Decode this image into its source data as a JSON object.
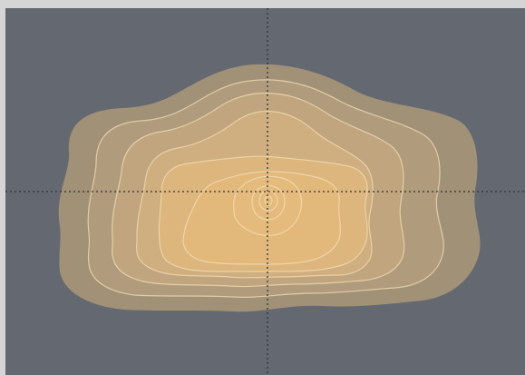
{
  "colors": {
    "window_border": "#d5d5d5",
    "canvas_background": "#646971",
    "crosshair": "#2f3236",
    "level_fills": [
      "#a19176",
      "#b09b7d",
      "#c0a57f",
      "#cfae7f",
      "#dcb67d",
      "#e2b97b",
      "#e4bb7c",
      "#e4bb7c"
    ],
    "contour_stroke": "#f3dfb6"
  },
  "contour_plot": {
    "levels": 8,
    "crosshair": {
      "style": "dotted",
      "orientation": [
        "horizontal",
        "vertical"
      ]
    }
  }
}
